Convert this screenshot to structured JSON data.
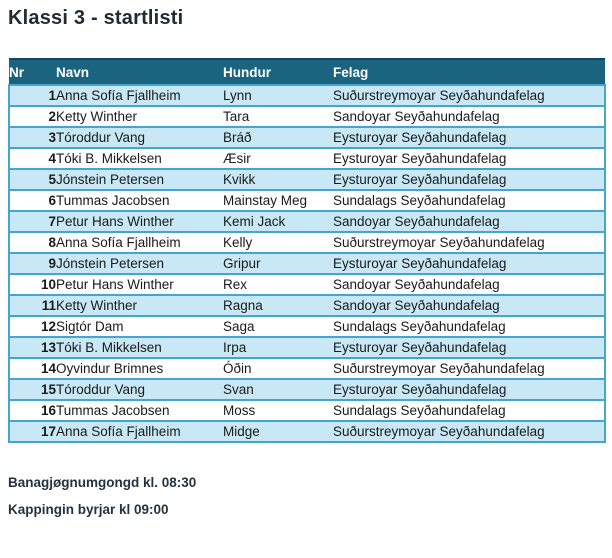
{
  "page_title": "Klassi 3 - startlisti",
  "table": {
    "columns": [
      "Nr",
      "Navn",
      "Hundur",
      "Felag"
    ],
    "rows": [
      {
        "nr": "1",
        "navn": "Anna Sofía Fjallheim",
        "hundur": "Lynn",
        "felag": "Suðurstreymoyar Seyðahundafelag"
      },
      {
        "nr": "2",
        "navn": "Ketty Winther",
        "hundur": "Tara",
        "felag": "Sandoyar Seyðahundafelag"
      },
      {
        "nr": "3",
        "navn": "Tóroddur Vang",
        "hundur": "Bráð",
        "felag": "Eysturoyar Seyðahundafelag"
      },
      {
        "nr": "4",
        "navn": "Tóki B. Mikkelsen",
        "hundur": "Æsir",
        "felag": "Eysturoyar Seyðahundafelag"
      },
      {
        "nr": "5",
        "navn": "Jónstein Petersen",
        "hundur": "Kvikk",
        "felag": "Eysturoyar Seyðahundafelag"
      },
      {
        "nr": "6",
        "navn": "Tummas Jacobsen",
        "hundur": "Mainstay Meg",
        "felag": "Sundalags Seyðahundafelag"
      },
      {
        "nr": "7",
        "navn": "Petur Hans Winther",
        "hundur": "Kemi Jack",
        "felag": "Sandoyar Seyðahundafelag"
      },
      {
        "nr": "8",
        "navn": "Anna Sofía Fjallheim",
        "hundur": "Kelly",
        "felag": "Suðurstreymoyar Seyðahundafelag"
      },
      {
        "nr": "9",
        "navn": "Jónstein Petersen",
        "hundur": "Gripur",
        "felag": "Eysturoyar Seyðahundafelag"
      },
      {
        "nr": "10",
        "navn": "Petur Hans Winther",
        "hundur": "Rex",
        "felag": "Sandoyar Seyðahundafelag"
      },
      {
        "nr": "11",
        "navn": "Ketty Winther",
        "hundur": "Ragna",
        "felag": "Sandoyar Seyðahundafelag"
      },
      {
        "nr": "12",
        "navn": "Sigtór Dam",
        "hundur": "Saga",
        "felag": "Sundalags Seyðahundafelag"
      },
      {
        "nr": "13",
        "navn": "Tóki B. Mikkelsen",
        "hundur": "Irpa",
        "felag": "Eysturoyar Seyðahundafelag"
      },
      {
        "nr": "14",
        "navn": "Oyvindur Brimnes",
        "hundur": "Óðin",
        "felag": "Suðurstreymoyar Seyðahundafelag"
      },
      {
        "nr": "15",
        "navn": "Tóroddur Vang",
        "hundur": "Svan",
        "felag": "Eysturoyar Seyðahundafelag"
      },
      {
        "nr": "16",
        "navn": "Tummas Jacobsen",
        "hundur": "Moss",
        "felag": "Sundalags Seyðahundafelag"
      },
      {
        "nr": "17",
        "navn": "Anna Sofía Fjallheim",
        "hundur": "Midge",
        "felag": "Suðurstreymoyar Seyðahundafelag"
      }
    ]
  },
  "footer": {
    "line1": "Banagjøgnumgongd kl. 08:30",
    "line2": "Kappingin byrjar kl 09:00"
  },
  "colors": {
    "header_bg": "#1B6480",
    "header_text": "#FFFFFF",
    "header_top_border": "#0D4A61",
    "band_row_bg": "#C9E8F5",
    "table_border": "#46A4D2",
    "body_text": "#1A1A1A",
    "title_text": "#222B33",
    "footer_text": "#24333F"
  }
}
